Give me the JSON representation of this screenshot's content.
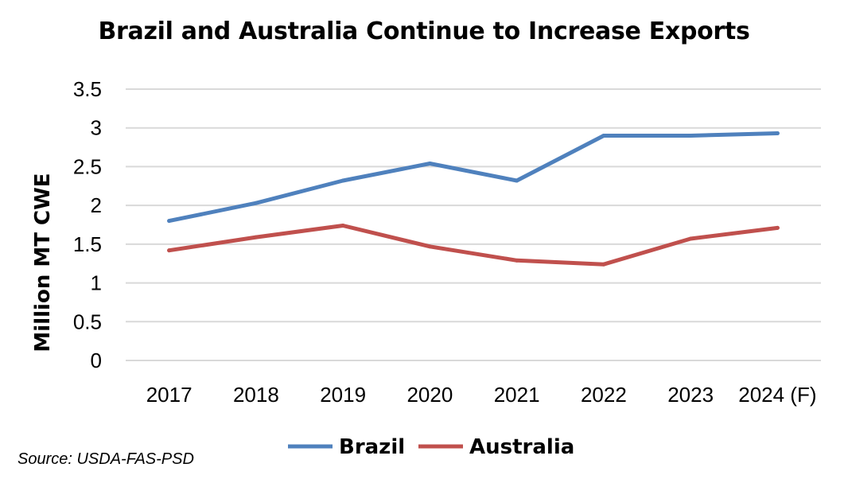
{
  "chart_data": {
    "type": "line",
    "title": "Brazil and Australia Continue to Increase Exports",
    "xlabel": "",
    "ylabel": "Million MT CWE",
    "categories": [
      "2017",
      "2018",
      "2019",
      "2020",
      "2021",
      "2022",
      "2023",
      "2024 (F)"
    ],
    "ylim": [
      0,
      3.5
    ],
    "yticks": [
      "0",
      "0.5",
      "1",
      "1.5",
      "2",
      "2.5",
      "3",
      "3.5"
    ],
    "grid": true,
    "legend_position": "bottom",
    "series": [
      {
        "name": "Brazil",
        "color": "#4f81bd",
        "values": [
          1.8,
          2.03,
          2.32,
          2.54,
          2.32,
          2.9,
          2.9,
          2.93
        ]
      },
      {
        "name": "Australia",
        "color": "#c0504d",
        "values": [
          1.42,
          1.59,
          1.74,
          1.47,
          1.29,
          1.24,
          1.57,
          1.71
        ]
      }
    ],
    "source": "Source: USDA-FAS-PSD"
  }
}
